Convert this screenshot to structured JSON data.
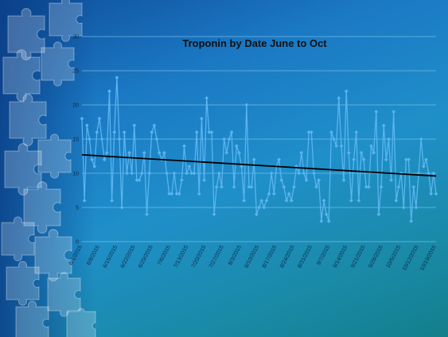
{
  "chart_data": {
    "type": "line",
    "title": "Troponin by Date June to Oct",
    "xlabel": "",
    "ylabel": "",
    "ylim": [
      0,
      30
    ],
    "yticks": [
      0,
      5,
      10,
      15,
      20,
      25,
      30
    ],
    "grid": true,
    "legend": "none",
    "x_tick_labels": [
      "6/1/2015",
      "6/8/2015",
      "6/15/2015",
      "6/22/2015",
      "6/29/2015",
      "7/6/2015",
      "7/13/2015",
      "7/20/2015",
      "7/27/2015",
      "8/3/2015",
      "8/10/2015",
      "8/17/2015",
      "8/24/2015",
      "8/31/2015",
      "9/7/2015",
      "9/14/2015",
      "9/21/2015",
      "9/28/2015",
      "10/5/2015",
      "10/12/2015",
      "10/19/2015"
    ],
    "series": [
      {
        "values": [
          18,
          6,
          17,
          15,
          12,
          11,
          16,
          18,
          15,
          12,
          13,
          22,
          6,
          16,
          24,
          15,
          5,
          16,
          10,
          13,
          10,
          17,
          9,
          9,
          10,
          13,
          4,
          10,
          16,
          17,
          15,
          13,
          12,
          13,
          10,
          7,
          7,
          10,
          7,
          7,
          9,
          14,
          10,
          11,
          10,
          10,
          16,
          7,
          18,
          9,
          21,
          16,
          16,
          4,
          8,
          10,
          8,
          15,
          13,
          15,
          16,
          8,
          14,
          13,
          11,
          6,
          20,
          8,
          8,
          12,
          4,
          5,
          6,
          5,
          6,
          7,
          10,
          7,
          11,
          12,
          9,
          8,
          6,
          7,
          6,
          8,
          11,
          10,
          13,
          10,
          9,
          16,
          16,
          10,
          8,
          9,
          3,
          6,
          4,
          3,
          16,
          15,
          14,
          21,
          14,
          9,
          22,
          13,
          6,
          12,
          16,
          6,
          13,
          12,
          8,
          8,
          14,
          13,
          19,
          4,
          8,
          17,
          12,
          15,
          9,
          19,
          6,
          8,
          10,
          5,
          12,
          12,
          3,
          8,
          5,
          10,
          15,
          11,
          12,
          10,
          7,
          10,
          7
        ],
        "color": "#5ab4f0"
      },
      {
        "name": "trend",
        "type": "linear-trendline",
        "start": 12.7,
        "end": 9.6,
        "color": "#000000"
      }
    ]
  }
}
